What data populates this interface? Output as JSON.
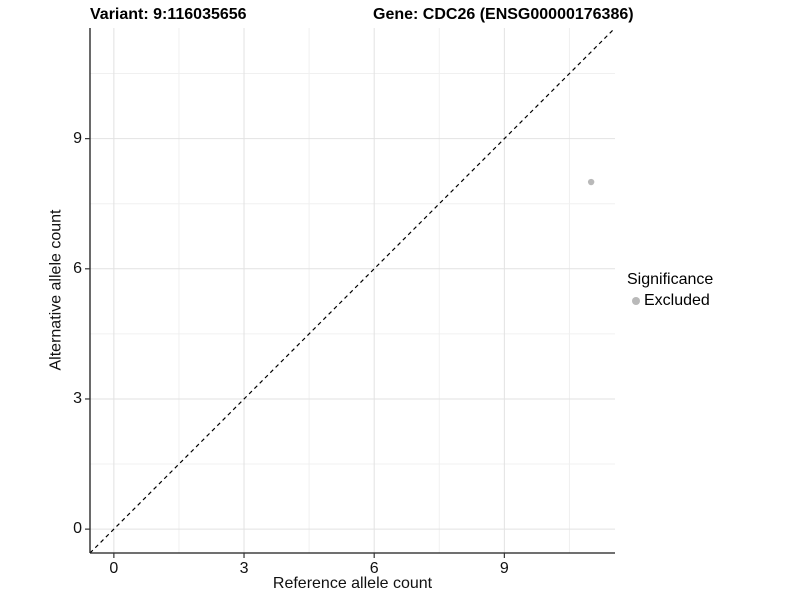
{
  "chart_data": {
    "type": "scatter",
    "title_left": "Variant: 9:116035656",
    "title_right": "Gene: CDC26 (ENSG00000176386)",
    "xlabel": "Reference allele count",
    "ylabel": "Alternative allele count",
    "xlim": [
      -0.55,
      11.55
    ],
    "ylim": [
      -0.55,
      11.55
    ],
    "x_ticks": [
      0,
      3,
      6,
      9
    ],
    "y_ticks": [
      0,
      3,
      6,
      9
    ],
    "x_minor_ticks": [
      1.5,
      4.5,
      7.5,
      10.5
    ],
    "y_minor_ticks": [
      1.5,
      4.5,
      7.5,
      10.5
    ],
    "grid": "major+minor",
    "reference_line": {
      "type": "identity y=x",
      "style": "dashed",
      "color": "#000000"
    },
    "series": [
      {
        "name": "Excluded",
        "marker": "circle",
        "color": "#b9b9b9",
        "points": [
          {
            "x": 11,
            "y": 8
          }
        ]
      }
    ],
    "legend": {
      "title": "Significance",
      "position": "right",
      "entries": [
        {
          "label": "Excluded",
          "color": "#b9b9b9"
        }
      ]
    }
  },
  "colors": {
    "background": "#ffffff",
    "axis_line": "#1a1a1a",
    "tick_mark": "#333333",
    "tick_label": "#111111",
    "grid_major": "#e2e2e2",
    "grid_minor": "#f0f0f0",
    "identity_line": "#000000",
    "point": "#b9b9b9"
  }
}
